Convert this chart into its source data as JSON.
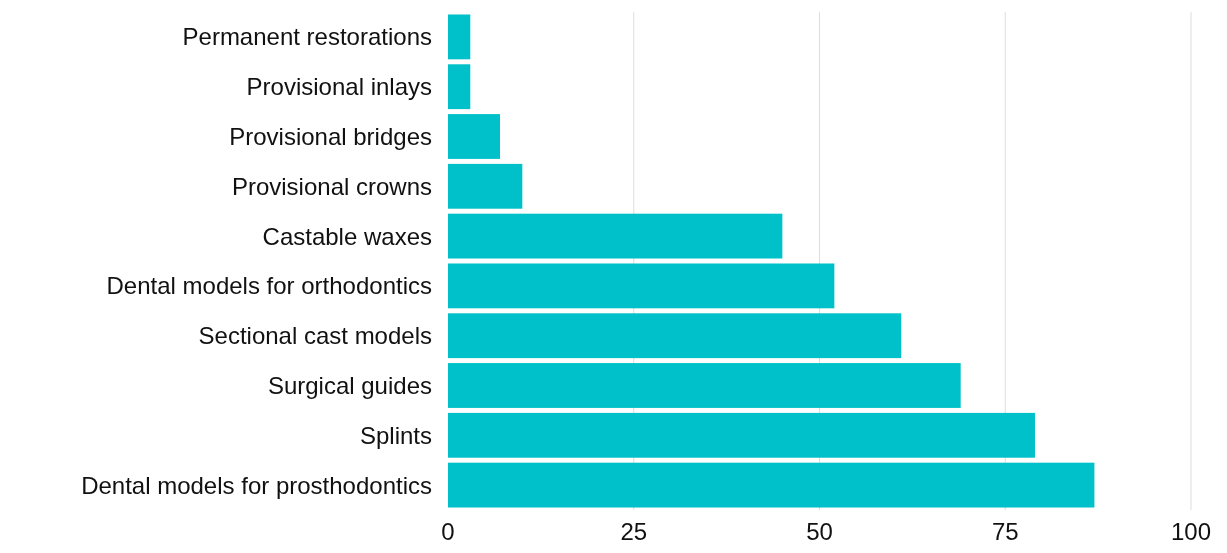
{
  "chart_data": {
    "type": "bar",
    "orientation": "horizontal",
    "categories": [
      "Permanent restorations",
      "Provisional inlays",
      "Provisional bridges",
      "Provisional crowns",
      "Castable waxes",
      "Dental models for orthodontics",
      "Sectional cast models",
      "Surgical guides",
      "Splints",
      "Dental models for prosthodontics"
    ],
    "values": [
      3,
      3,
      7,
      10,
      45,
      52,
      61,
      69,
      79,
      87
    ],
    "color": "#00c1c9",
    "xlim": [
      0,
      100
    ],
    "xticks": [
      0,
      25,
      50,
      75,
      100
    ],
    "grid": "x"
  }
}
